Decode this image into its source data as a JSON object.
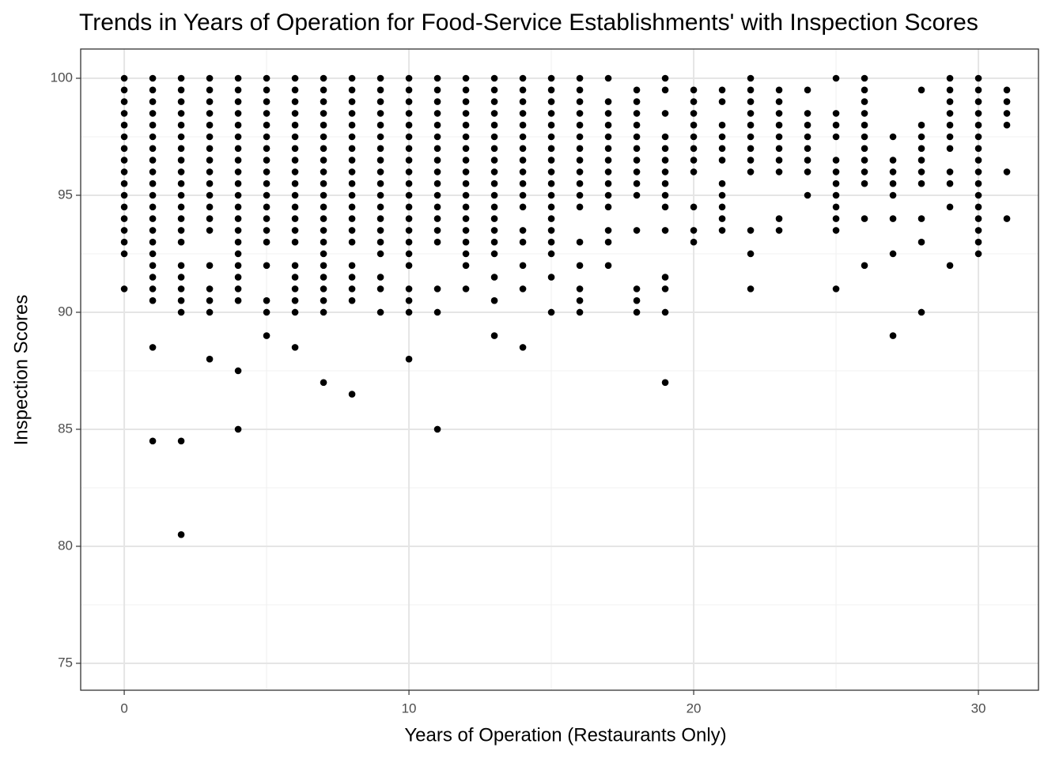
{
  "chart_data": {
    "type": "scatter",
    "title": "Trends in Years of Operation for Food-Service Establishments' with Inspection Scores",
    "x_label": "Years of Operation (Restaurants Only)",
    "y_label": "Inspection Scores",
    "color": "#000000",
    "grid": true,
    "xlim": [
      -1.53,
      32.11
    ],
    "ylim": [
      73.85,
      101.25
    ],
    "xticks": [
      0,
      10,
      20,
      30
    ],
    "yticks": [
      75,
      80,
      85,
      90,
      95,
      100
    ],
    "xminor": [
      5,
      15,
      25
    ],
    "yminor": [
      77.5,
      82.5,
      87.5,
      92.5,
      97.5
    ],
    "x": [
      0,
      0,
      0,
      0,
      0,
      0,
      0,
      0,
      0,
      0,
      0,
      0,
      0,
      0,
      0,
      0,
      0,
      1,
      1,
      1,
      1,
      1,
      1,
      1,
      1,
      1,
      1,
      1,
      1,
      1,
      1,
      1,
      1,
      1,
      1,
      1,
      1,
      1,
      1,
      2,
      2,
      2,
      2,
      2,
      2,
      2,
      2,
      2,
      2,
      2,
      2,
      2,
      2,
      2,
      2,
      2,
      2,
      2,
      2,
      2,
      2,
      3,
      3,
      3,
      3,
      3,
      3,
      3,
      3,
      3,
      3,
      3,
      3,
      3,
      3,
      3,
      3,
      3,
      3,
      3,
      4,
      4,
      4,
      4,
      4,
      4,
      4,
      4,
      4,
      4,
      4,
      4,
      4,
      4,
      4,
      4,
      4,
      4,
      4,
      4,
      4,
      4,
      5,
      5,
      5,
      5,
      5,
      5,
      5,
      5,
      5,
      5,
      5,
      5,
      5,
      5,
      5,
      5,
      5,
      5,
      5,
      6,
      6,
      6,
      6,
      6,
      6,
      6,
      6,
      6,
      6,
      6,
      6,
      6,
      6,
      6,
      6,
      6,
      6,
      6,
      6,
      6,
      7,
      7,
      7,
      7,
      7,
      7,
      7,
      7,
      7,
      7,
      7,
      7,
      7,
      7,
      7,
      7,
      7,
      7,
      7,
      7,
      7,
      7,
      8,
      8,
      8,
      8,
      8,
      8,
      8,
      8,
      8,
      8,
      8,
      8,
      8,
      8,
      8,
      8,
      8,
      8,
      8,
      8,
      9,
      9,
      9,
      9,
      9,
      9,
      9,
      9,
      9,
      9,
      9,
      9,
      9,
      9,
      9,
      9,
      9,
      9,
      9,
      10,
      10,
      10,
      10,
      10,
      10,
      10,
      10,
      10,
      10,
      10,
      10,
      10,
      10,
      10,
      10,
      10,
      10,
      10,
      10,
      10,
      11,
      11,
      11,
      11,
      11,
      11,
      11,
      11,
      11,
      11,
      11,
      11,
      11,
      11,
      11,
      11,
      11,
      11,
      12,
      12,
      12,
      12,
      12,
      12,
      12,
      12,
      12,
      12,
      12,
      12,
      12,
      12,
      12,
      12,
      12,
      12,
      13,
      13,
      13,
      13,
      13,
      13,
      13,
      13,
      13,
      13,
      13,
      13,
      13,
      13,
      13,
      13,
      13,
      13,
      13,
      14,
      14,
      14,
      14,
      14,
      14,
      14,
      14,
      14,
      14,
      14,
      14,
      14,
      14,
      14,
      14,
      14,
      15,
      15,
      15,
      15,
      15,
      15,
      15,
      15,
      15,
      15,
      15,
      15,
      15,
      15,
      15,
      15,
      15,
      15,
      16,
      16,
      16,
      16,
      16,
      16,
      16,
      16,
      16,
      16,
      16,
      16,
      16,
      16,
      16,
      16,
      16,
      17,
      17,
      17,
      17,
      17,
      17,
      17,
      17,
      17,
      17,
      17,
      17,
      17,
      17,
      18,
      18,
      18,
      18,
      18,
      18,
      18,
      18,
      18,
      18,
      18,
      18,
      18,
      18,
      19,
      19,
      19,
      19,
      19,
      19,
      19,
      19,
      19,
      19,
      19,
      19,
      19,
      19,
      19,
      20,
      20,
      20,
      20,
      20,
      20,
      20,
      20,
      20,
      20,
      20,
      21,
      21,
      21,
      21,
      21,
      21,
      21,
      21,
      21,
      21,
      21,
      22,
      22,
      22,
      22,
      22,
      22,
      22,
      22,
      22,
      22,
      22,
      22,
      23,
      23,
      23,
      23,
      23,
      23,
      23,
      23,
      23,
      23,
      24,
      24,
      24,
      24,
      24,
      24,
      24,
      24,
      25,
      25,
      25,
      25,
      25,
      25,
      25,
      25,
      25,
      25,
      25,
      25,
      26,
      26,
      26,
      26,
      26,
      26,
      26,
      26,
      26,
      26,
      26,
      26,
      27,
      27,
      27,
      27,
      27,
      27,
      27,
      27,
      28,
      28,
      28,
      28,
      28,
      28,
      28,
      28,
      28,
      28,
      29,
      29,
      29,
      29,
      29,
      29,
      29,
      29,
      29,
      29,
      29,
      30,
      30,
      30,
      30,
      30,
      30,
      30,
      30,
      30,
      30,
      30,
      30,
      30,
      30,
      30,
      30,
      31,
      31,
      31,
      31,
      31,
      31
    ],
    "values": [
      100,
      99.5,
      99,
      98.5,
      98,
      97.5,
      97,
      96.5,
      96,
      95.5,
      95,
      94.5,
      94,
      93.5,
      93,
      92.5,
      91,
      100,
      99.5,
      99,
      98.5,
      98,
      97.5,
      97,
      96.5,
      96,
      95.5,
      95,
      94.5,
      94,
      93.5,
      93,
      92.5,
      92,
      91.5,
      91,
      90.5,
      88.5,
      84.5,
      100,
      99.5,
      99,
      98.5,
      98,
      97.5,
      97,
      96.5,
      96,
      95.5,
      95,
      94.5,
      94,
      93.5,
      93,
      92,
      91.5,
      91,
      90.5,
      90,
      84.5,
      80.5,
      100,
      99.5,
      99,
      98.5,
      98,
      97.5,
      97,
      96.5,
      96,
      95.5,
      95,
      94.5,
      94,
      93.5,
      92,
      91,
      90.5,
      90,
      88,
      100,
      99.5,
      99,
      98.5,
      98,
      97.5,
      97,
      96.5,
      96,
      95.5,
      95,
      94.5,
      94,
      93.5,
      93,
      92.5,
      92,
      91.5,
      91,
      90.5,
      87.5,
      85,
      100,
      99.5,
      99,
      98.5,
      98,
      97.5,
      97,
      96.5,
      96,
      95.5,
      95,
      94.5,
      94,
      93.5,
      93,
      92,
      90.5,
      90,
      89,
      100,
      99.5,
      99,
      98.5,
      98,
      97.5,
      97,
      96.5,
      96,
      95.5,
      95,
      94.5,
      94,
      93.5,
      93,
      92,
      91.5,
      91,
      90.5,
      90,
      88.5,
      100,
      99.5,
      99,
      98.5,
      98,
      97.5,
      97,
      96.5,
      96,
      95.5,
      95,
      94.5,
      94,
      93.5,
      93,
      92.5,
      92,
      91.5,
      91,
      90.5,
      90,
      87,
      100,
      99.5,
      99,
      98.5,
      98,
      97.5,
      97,
      96.5,
      96,
      95.5,
      95,
      94.5,
      94,
      93.5,
      93,
      92,
      91.5,
      91,
      90.5,
      86.5,
      100,
      99.5,
      99,
      98.5,
      98,
      97.5,
      97,
      96.5,
      96,
      95.5,
      95,
      94.5,
      94,
      93.5,
      93,
      92.5,
      91.5,
      91,
      90,
      100,
      99.5,
      99,
      98.5,
      98,
      97.5,
      97,
      96.5,
      96,
      95.5,
      95,
      94.5,
      94,
      93.5,
      93,
      92.5,
      92,
      91,
      90.5,
      90,
      88,
      100,
      99.5,
      99,
      98.5,
      98,
      97.5,
      97,
      96.5,
      96,
      95.5,
      95,
      94.5,
      94,
      93.5,
      93,
      91,
      90,
      85,
      100,
      99.5,
      99,
      98.5,
      98,
      97.5,
      97,
      96.5,
      96,
      95.5,
      95,
      94.5,
      94,
      93.5,
      93,
      92.5,
      92,
      91,
      100,
      99.5,
      99,
      98.5,
      98,
      97.5,
      97,
      96.5,
      96,
      95.5,
      95,
      94.5,
      94,
      93.5,
      93,
      92.5,
      91.5,
      90.5,
      89,
      100,
      99.5,
      99,
      98.5,
      98,
      97.5,
      97,
      96.5,
      96,
      95.5,
      95,
      94.5,
      93.5,
      93,
      92,
      91,
      88.5,
      100,
      99.5,
      99,
      98.5,
      98,
      97.5,
      97,
      96.5,
      96,
      95.5,
      95,
      94.5,
      94,
      93.5,
      93,
      92.5,
      91.5,
      90,
      100,
      99.5,
      99,
      98.5,
      98,
      97.5,
      97,
      96.5,
      96,
      95.5,
      95,
      94.5,
      93,
      92,
      91,
      90.5,
      90,
      100,
      99,
      98.5,
      98,
      97.5,
      97,
      96.5,
      96,
      95.5,
      95,
      94.5,
      93.5,
      93,
      92,
      99.5,
      99,
      98.5,
      98,
      97.5,
      97,
      96.5,
      96,
      95.5,
      95,
      93.5,
      91,
      90.5,
      90,
      100,
      99.5,
      98.5,
      97.5,
      97,
      96.5,
      96,
      95.5,
      95,
      94.5,
      93.5,
      91.5,
      91,
      90,
      87,
      99.5,
      99,
      98.5,
      98,
      97.5,
      97,
      96.5,
      96,
      94.5,
      93.5,
      93,
      99.5,
      99,
      98,
      97.5,
      97,
      96.5,
      95.5,
      95,
      94.5,
      94,
      93.5,
      100,
      99.5,
      99,
      98.5,
      98,
      97.5,
      97,
      96.5,
      96,
      93.5,
      92.5,
      91,
      99.5,
      99,
      98.5,
      98,
      97.5,
      97,
      96.5,
      96,
      94,
      93.5,
      99.5,
      98.5,
      98,
      97.5,
      97,
      96.5,
      96,
      95,
      100,
      98.5,
      98,
      97.5,
      96.5,
      96,
      95.5,
      95,
      94.5,
      94,
      93.5,
      91,
      100,
      99.5,
      99,
      98.5,
      98,
      97.5,
      97,
      96.5,
      96,
      95.5,
      94,
      92,
      97.5,
      96.5,
      96,
      95.5,
      95,
      94,
      92.5,
      89,
      99.5,
      98,
      97.5,
      97,
      96.5,
      96,
      95.5,
      94,
      93,
      90,
      100,
      99.5,
      99,
      98.5,
      98,
      97.5,
      97,
      96,
      95.5,
      94.5,
      92,
      100,
      99.5,
      99,
      98.5,
      98,
      97.5,
      97,
      96.5,
      96,
      95.5,
      95,
      94.5,
      94,
      93.5,
      93,
      92.5,
      99.5,
      99,
      98.5,
      98,
      96,
      94
    ]
  }
}
